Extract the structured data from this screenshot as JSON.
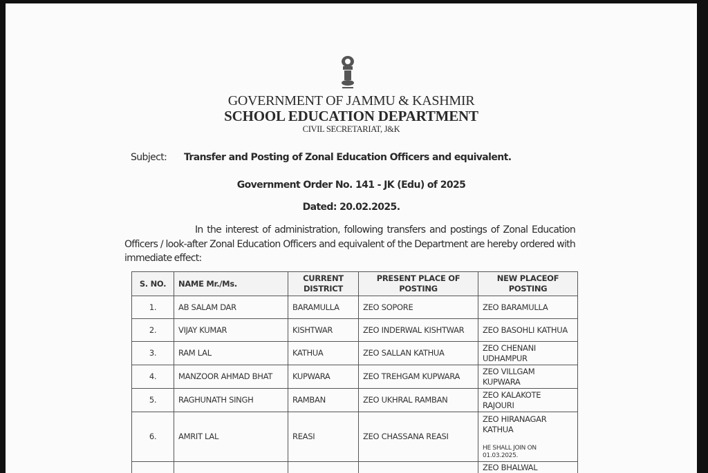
{
  "header": {
    "emblem": "state-emblem-icon",
    "government": "GOVERNMENT OF JAMMU & KASHMIR",
    "department": "SCHOOL EDUCATION DEPARTMENT",
    "office": "CIVIL SECRETARIAT, J&K"
  },
  "subject": {
    "label": "Subject:",
    "text": "Transfer and Posting of Zonal Education Officers and equivalent."
  },
  "order_no": "Government Order No. 141 - JK (Edu) of 2025",
  "dated": "Dated: 20.02.2025.",
  "paragraph": "In the interest of administration, following transfers and postings of Zonal Education Officers / look-after Zonal Education Officers and equivalent of the Department are hereby ordered with immediate effect:",
  "table": {
    "headers": [
      "S. NO.",
      "NAME Mr./Ms.",
      "CURRENT DISTRICT",
      "PRESENT PLACE OF POSTING",
      "NEW PLACEOF POSTING"
    ],
    "rows": [
      {
        "sno": "1.",
        "name": "AB SALAM DAR",
        "district": "BARAMULLA",
        "present": "ZEO SOPORE",
        "new": "ZEO BARAMULLA",
        "note": ""
      },
      {
        "sno": "2.",
        "name": "VIJAY KUMAR",
        "district": "KISHTWAR",
        "present": "ZEO INDERWAL KISHTWAR",
        "new": "ZEO BASOHLI KATHUA",
        "note": ""
      },
      {
        "sno": "3.",
        "name": "RAM LAL",
        "district": "KATHUA",
        "present": "ZEO SALLAN KATHUA",
        "new": "ZEO CHENANI UDHAMPUR",
        "note": ""
      },
      {
        "sno": "4.",
        "name": "MANZOOR AHMAD BHAT",
        "district": "KUPWARA",
        "present": "ZEO TREHGAM KUPWARA",
        "new": "ZEO VILLGAM KUPWARA",
        "note": ""
      },
      {
        "sno": "5.",
        "name": "RAGHUNATH SINGH",
        "district": "RAMBAN",
        "present": "ZEO UKHRAL RAMBAN",
        "new": "ZEO KALAKOTE RAJOURI",
        "note": ""
      },
      {
        "sno": "6.",
        "name": "AMRIT LAL",
        "district": "REASI",
        "present": "ZEO CHASSANA REASI",
        "new": "ZEO HIRANAGAR KATHUA",
        "note": "HE SHALL JOIN ON 01.03.2025."
      },
      {
        "sno": "",
        "name": "",
        "district": "",
        "present": "",
        "new": "ZEO BHALWAL",
        "note": ""
      }
    ]
  }
}
